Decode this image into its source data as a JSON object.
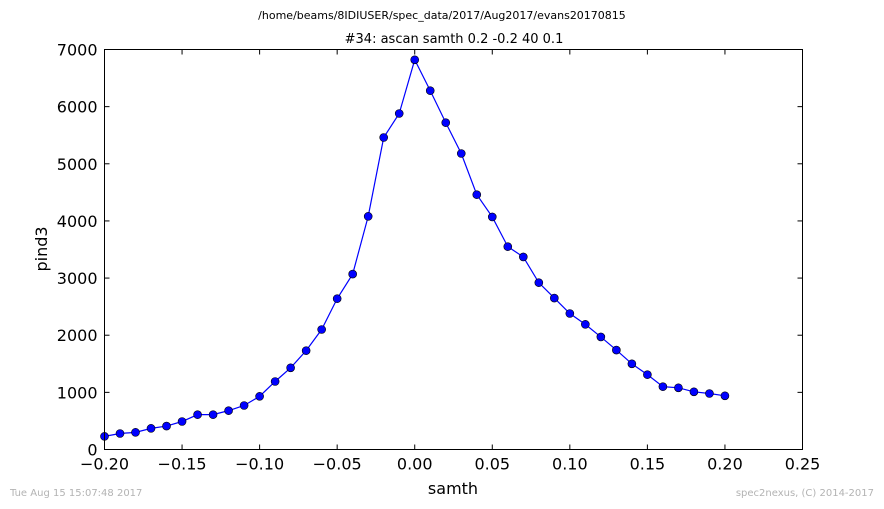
{
  "figure": {
    "suptitle": "/home/beams/8IDIUSER/spec_data/2017/Aug2017/evans20170815",
    "footer_left": "Tue Aug 15 15:07:48 2017",
    "footer_right": "spec2nexus, (C) 2014-2017"
  },
  "chart_data": {
    "type": "line",
    "title": "#34: ascan  samth 0.2 -0.2  40 0.1",
    "xlabel": "samth",
    "ylabel": "pind3",
    "xlim": [
      -0.2,
      0.25
    ],
    "ylim": [
      0,
      7000
    ],
    "xticks": [
      -0.2,
      -0.15,
      -0.1,
      -0.05,
      0.0,
      0.05,
      0.1,
      0.15,
      0.2,
      0.25
    ],
    "xtick_labels": [
      "−0.20",
      "−0.15",
      "−0.10",
      "−0.05",
      "0.00",
      "0.05",
      "0.10",
      "0.15",
      "0.20",
      "0.25"
    ],
    "yticks": [
      0,
      1000,
      2000,
      3000,
      4000,
      5000,
      6000,
      7000
    ],
    "ytick_labels": [
      "0",
      "1000",
      "2000",
      "3000",
      "4000",
      "5000",
      "6000",
      "7000"
    ],
    "grid": false,
    "series": [
      {
        "color": "#0000ff",
        "marker": "circle",
        "x": [
          -0.2,
          -0.19,
          -0.18,
          -0.17,
          -0.16,
          -0.15,
          -0.14,
          -0.13,
          -0.12,
          -0.11,
          -0.1,
          -0.09,
          -0.08,
          -0.07,
          -0.06,
          -0.05,
          -0.04,
          -0.03,
          -0.02,
          -0.01,
          0.0,
          0.01,
          0.02,
          0.03,
          0.04,
          0.05,
          0.06,
          0.07,
          0.08,
          0.09,
          0.1,
          0.11,
          0.12,
          0.13,
          0.14,
          0.15,
          0.16,
          0.17,
          0.18,
          0.19,
          0.2
        ],
        "y": [
          230,
          280,
          300,
          370,
          410,
          490,
          610,
          610,
          680,
          770,
          930,
          1190,
          1430,
          1730,
          2100,
          2640,
          3070,
          4080,
          5460,
          5880,
          6820,
          6280,
          5720,
          5180,
          4460,
          4070,
          3550,
          3370,
          2920,
          2650,
          2380,
          2190,
          1970,
          1740,
          1500,
          1310,
          1100,
          1080,
          1010,
          980,
          940
        ]
      }
    ]
  }
}
